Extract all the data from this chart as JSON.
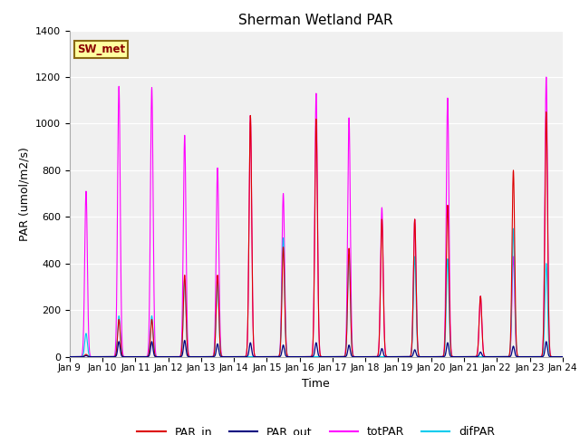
{
  "title": "Sherman Wetland PAR",
  "xlabel": "Time",
  "ylabel": "PAR (umol/m2/s)",
  "ylim": [
    0,
    1400
  ],
  "yticks": [
    0,
    200,
    400,
    600,
    800,
    1000,
    1200,
    1400
  ],
  "bg_color": "#e0e0e0",
  "plot_bg": "#f0f0f0",
  "annotation_text": "SW_met",
  "annotation_bg": "#ffffa0",
  "annotation_border": "#8b6914",
  "line_colors": {
    "PAR_in": "#dd0000",
    "PAR_out": "#000080",
    "totPAR": "#ff00ff",
    "difPAR": "#00ccee"
  },
  "totPAR_peaks": [
    710,
    1160,
    1155,
    950,
    810,
    1035,
    700,
    1130,
    1025,
    640,
    590,
    1110,
    260,
    430,
    1200
  ],
  "PAR_in_peaks": [
    10,
    160,
    160,
    350,
    350,
    1035,
    470,
    1020,
    465,
    590,
    590,
    650,
    260,
    800,
    1050
  ],
  "difPAR_peaks": [
    100,
    175,
    175,
    330,
    335,
    0,
    510,
    0,
    440,
    0,
    430,
    420,
    0,
    550,
    400
  ],
  "PAR_out_peaks": [
    5,
    65,
    65,
    70,
    55,
    60,
    50,
    60,
    50,
    35,
    30,
    60,
    20,
    45,
    65
  ]
}
